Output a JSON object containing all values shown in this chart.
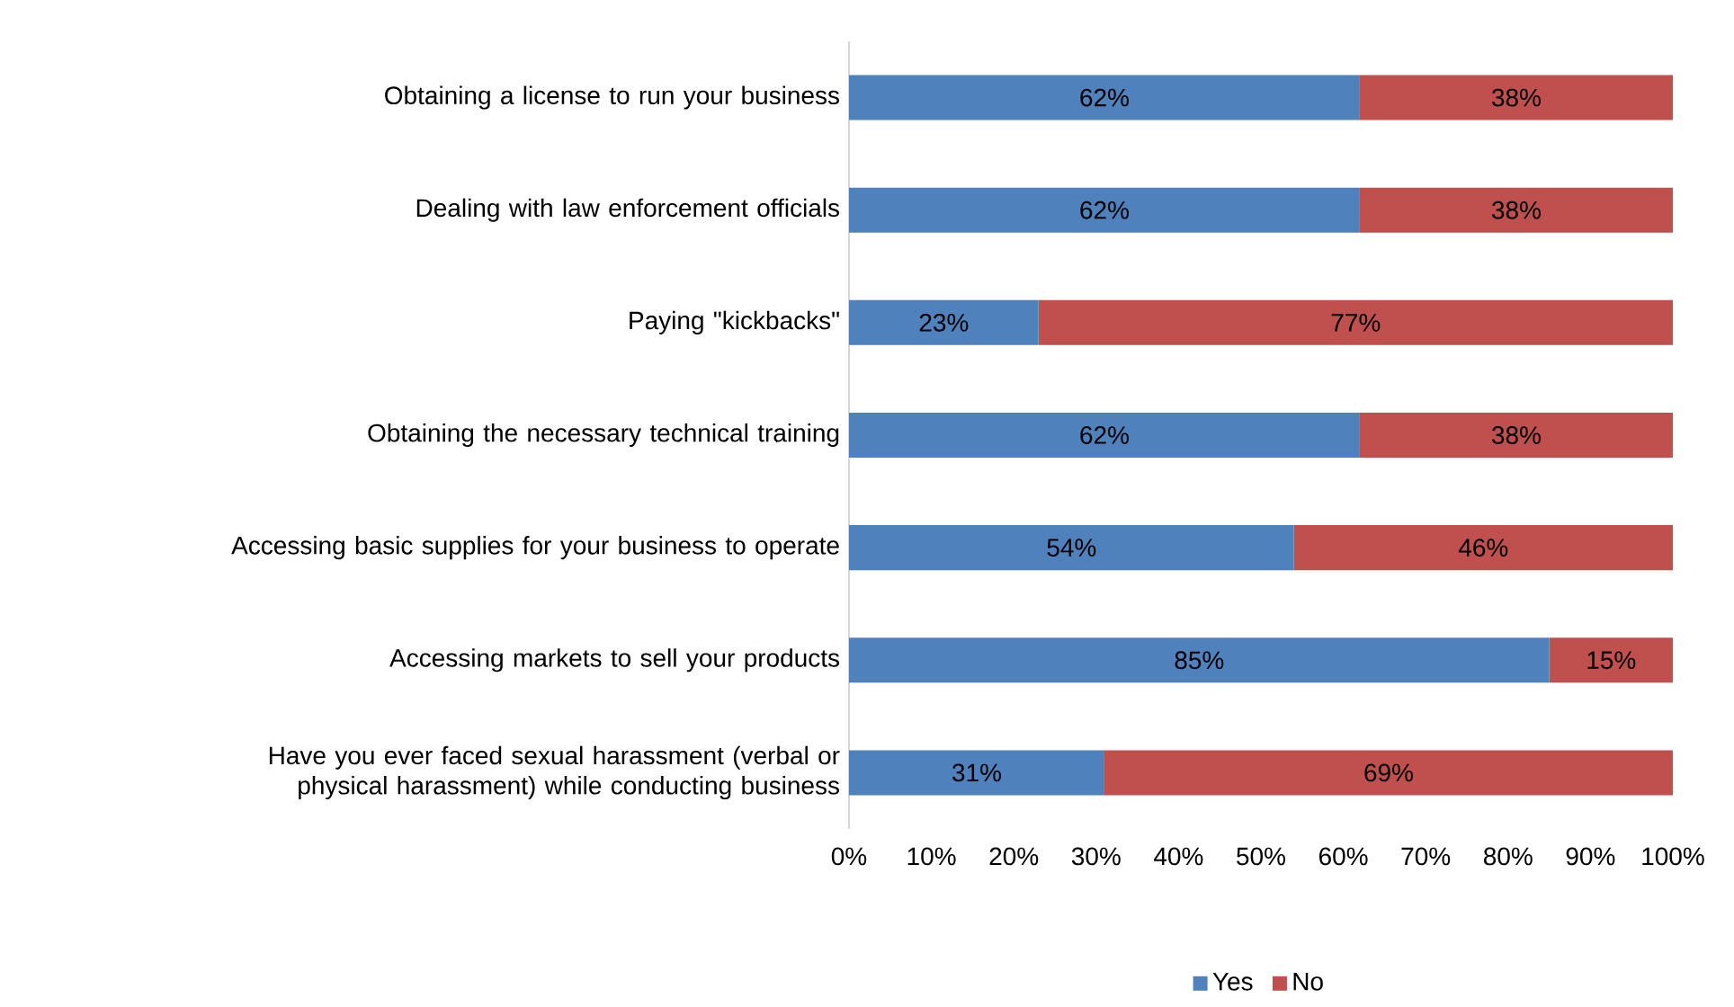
{
  "chart_data": {
    "type": "bar",
    "orientation": "horizontal",
    "stacked": true,
    "categories": [
      "Obtaining a license to run your business",
      "Dealing with law enforcement officials",
      "Paying \"kickbacks\"",
      "Obtaining the necessary technical training",
      "Accessing basic supplies for your business to operate",
      "Accessing markets to sell your products",
      "Have you ever faced sexual harassment (verbal or physical harassment) while conducting business"
    ],
    "series": [
      {
        "name": "Yes",
        "color": "#4f81bd",
        "values": [
          62,
          62,
          23,
          62,
          54,
          85,
          31
        ],
        "value_labels": [
          "62%",
          "62%",
          "23%",
          "62%",
          "54%",
          "85%",
          "31%"
        ]
      },
      {
        "name": "No",
        "color": "#c0504d",
        "values": [
          38,
          38,
          77,
          38,
          46,
          15,
          69
        ],
        "value_labels": [
          "38%",
          "38%",
          "77%",
          "38%",
          "46%",
          "15%",
          "69%"
        ]
      }
    ],
    "xlim": [
      0,
      100
    ],
    "xticks": [
      {
        "value": 0,
        "label": "0%"
      },
      {
        "value": 10,
        "label": "10%"
      },
      {
        "value": 20,
        "label": "20%"
      },
      {
        "value": 30,
        "label": "30%"
      },
      {
        "value": 40,
        "label": "40%"
      },
      {
        "value": 50,
        "label": "50%"
      },
      {
        "value": 60,
        "label": "60%"
      },
      {
        "value": 70,
        "label": "70%"
      },
      {
        "value": 80,
        "label": "80%"
      },
      {
        "value": 90,
        "label": "90%"
      },
      {
        "value": 100,
        "label": "100%"
      }
    ],
    "grid": false,
    "legend": "bottom"
  }
}
